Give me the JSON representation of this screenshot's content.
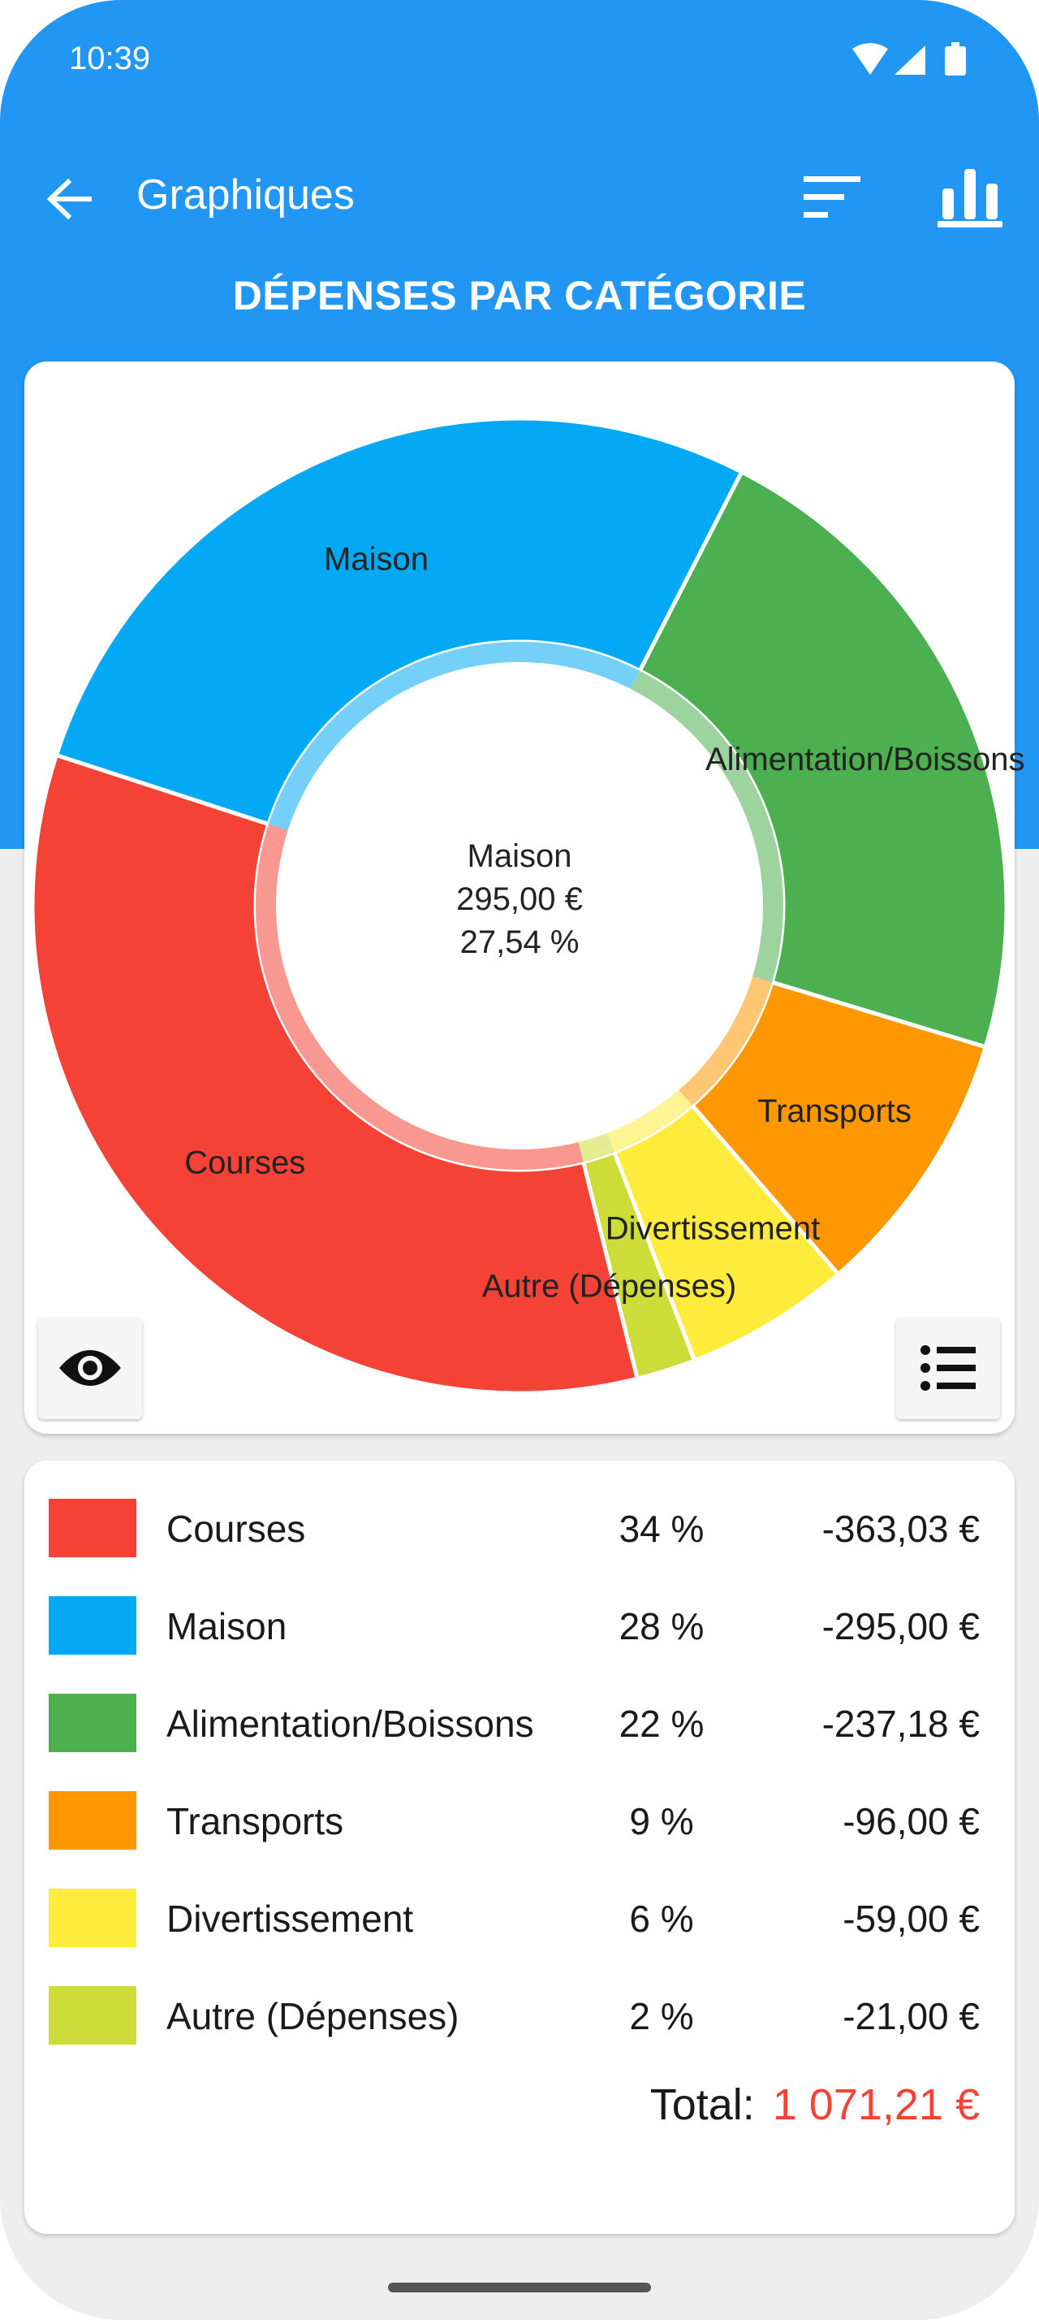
{
  "status_bar": {
    "time": "10:39",
    "icons": [
      "wifi-icon",
      "signal-icon",
      "battery-icon"
    ]
  },
  "app_bar": {
    "title": "Graphiques",
    "icons": [
      "back-arrow-icon",
      "sort-icon",
      "bar-chart-icon"
    ]
  },
  "section_title": "DÉPENSES PAR CATÉGORIE",
  "colors": {
    "primary": "#2196f3",
    "background": "#eeeeee",
    "total_value": "#f44336"
  },
  "chart_data": {
    "type": "pie",
    "style": "donut",
    "title": "DÉPENSES PAR CATÉGORIE",
    "selected": {
      "label": "Maison",
      "amount": "295,00 €",
      "percent": "27,54 %"
    },
    "slices": [
      {
        "label": "Maison",
        "value": 295.0,
        "color": "#03a9f4"
      },
      {
        "label": "Alimentation/Boissons",
        "value": 237.18,
        "color": "#4caf50"
      },
      {
        "label": "Transports",
        "value": 96.0,
        "color": "#ff9800"
      },
      {
        "label": "Divertissement",
        "value": 59.0,
        "color": "#ffeb3b"
      },
      {
        "label": "Autre (Dépenses)",
        "value": 21.0,
        "color": "#cddc39"
      },
      {
        "label": "Courses",
        "value": 363.03,
        "color": "#f44336"
      }
    ]
  },
  "chart_buttons": {
    "eye": "eye-icon",
    "list": "list-icon"
  },
  "legend": {
    "rows": [
      {
        "name": "Courses",
        "percent": "34 %",
        "amount": "-363,03 €",
        "color": "#f44336"
      },
      {
        "name": "Maison",
        "percent": "28 %",
        "amount": "-295,00 €",
        "color": "#03a9f4"
      },
      {
        "name": "Alimentation/Boissons",
        "percent": "22 %",
        "amount": "-237,18 €",
        "color": "#4caf50"
      },
      {
        "name": "Transports",
        "percent": "9 %",
        "amount": "-96,00 €",
        "color": "#ff9800"
      },
      {
        "name": "Divertissement",
        "percent": "6 %",
        "amount": "-59,00 €",
        "color": "#ffeb3b"
      },
      {
        "name": "Autre (Dépenses)",
        "percent": "2 %",
        "amount": "-21,00 €",
        "color": "#cddc39"
      }
    ],
    "total_label": "Total:",
    "total_value": "1 071,21 €"
  }
}
